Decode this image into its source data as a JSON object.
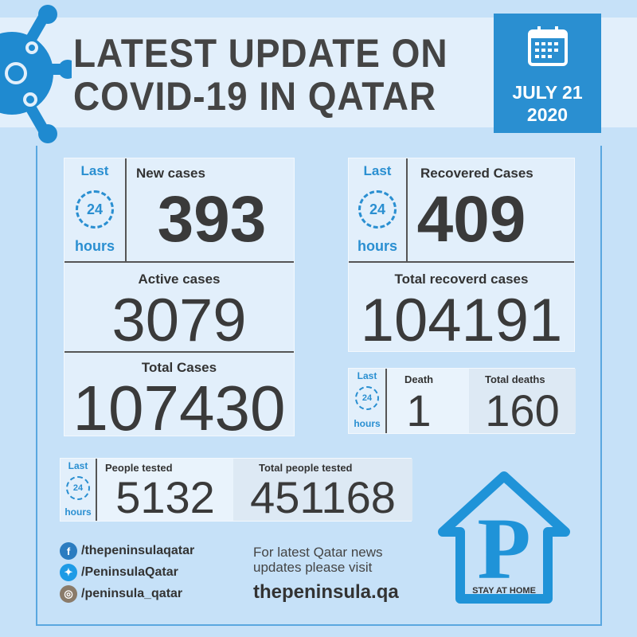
{
  "header": {
    "title_line1": "LATEST UPDATE ON",
    "title_line2": "COVID-19 IN QATAR",
    "date_line1": "JULY 21",
    "date_line2": "2020"
  },
  "last24": {
    "last": "Last",
    "num": "24",
    "hours": "hours"
  },
  "new_cases": {
    "label": "New cases",
    "value": "393"
  },
  "active_cases": {
    "label": "Active cases",
    "value": "3079"
  },
  "total_cases": {
    "label": "Total Cases",
    "value": "107430"
  },
  "recovered_cases": {
    "label": "Recovered Cases",
    "value": "409"
  },
  "total_recovered": {
    "label": "Total recoverd cases",
    "value": "104191"
  },
  "death": {
    "label": "Death",
    "value": "1"
  },
  "total_deaths": {
    "label": "Total deaths",
    "value": "160"
  },
  "people_tested": {
    "label": "People tested",
    "value": "5132"
  },
  "total_people_tested": {
    "label": "Total people tested",
    "value": "451168"
  },
  "social": {
    "facebook": "/thepeninsulaqatar",
    "twitter": "/PeninsulaQatar",
    "instagram": "/peninsula_qatar"
  },
  "footer": {
    "line1": "For latest Qatar news",
    "line2": "updates please visit",
    "url": "thepeninsula.qa"
  },
  "logo": {
    "letter": "P",
    "tagline": "STAY AT HOME"
  },
  "colors": {
    "accent": "#2a8fd1",
    "background": "#c6e1f8",
    "text": "#3d3d3d"
  }
}
